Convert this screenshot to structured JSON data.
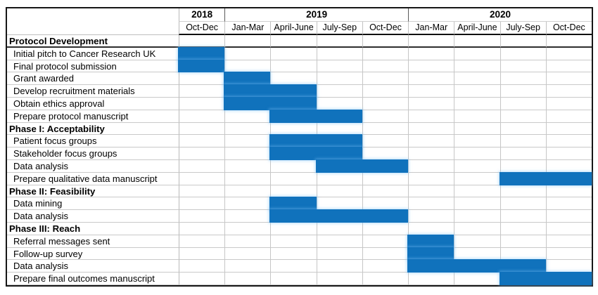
{
  "chart_data": {
    "type": "gantt",
    "title": "",
    "time_axis": {
      "years": [
        {
          "label": "2018",
          "quarter_span": 1
        },
        {
          "label": "2019",
          "quarter_span": 4
        },
        {
          "label": "2020",
          "quarter_span": 4
        }
      ],
      "quarters": [
        "Oct-Dec",
        "Jan-Mar",
        "April-June",
        "July-Sep",
        "Oct-Dec",
        "Jan-Mar",
        "April-June",
        "July-Sep",
        "Oct-Dec"
      ]
    },
    "rows": [
      {
        "label": "Protocol Development",
        "section": true,
        "start": null,
        "span": 0
      },
      {
        "label": "Initial pitch to Cancer Research UK",
        "section": false,
        "start": 1,
        "span": 1
      },
      {
        "label": "Final protocol submission",
        "section": false,
        "start": 1,
        "span": 1
      },
      {
        "label": "Grant awarded",
        "section": false,
        "start": 2,
        "span": 1
      },
      {
        "label": "Develop recruitment materials",
        "section": false,
        "start": 2,
        "span": 2
      },
      {
        "label": "Obtain ethics approval",
        "section": false,
        "start": 2,
        "span": 2
      },
      {
        "label": "Prepare protocol manuscript",
        "section": false,
        "start": 3,
        "span": 2
      },
      {
        "label": "Phase I: Acceptability",
        "section": true,
        "start": null,
        "span": 0
      },
      {
        "label": "Patient focus groups",
        "section": false,
        "start": 3,
        "span": 2
      },
      {
        "label": "Stakeholder focus groups",
        "section": false,
        "start": 3,
        "span": 2
      },
      {
        "label": "Data analysis",
        "section": false,
        "start": 4,
        "span": 2
      },
      {
        "label": "Prepare qualitative data manuscript",
        "section": false,
        "start": 8,
        "span": 2
      },
      {
        "label": "Phase II: Feasibility",
        "section": true,
        "start": null,
        "span": 0
      },
      {
        "label": "Data mining",
        "section": false,
        "start": 3,
        "span": 1
      },
      {
        "label": "Data analysis",
        "section": false,
        "start": 3,
        "span": 3
      },
      {
        "label": "Phase III: Reach",
        "section": true,
        "start": null,
        "span": 0
      },
      {
        "label": "Referral messages sent",
        "section": false,
        "start": 6,
        "span": 1
      },
      {
        "label": "Follow-up survey",
        "section": false,
        "start": 6,
        "span": 1
      },
      {
        "label": "Data analysis",
        "section": false,
        "start": 6,
        "span": 3
      },
      {
        "label": "Prepare final outcomes manuscript",
        "section": false,
        "start": 8,
        "span": 2
      }
    ],
    "colors": {
      "bar": "#1072BC",
      "gridline": "#C9C9C9",
      "outer_border": "#161616"
    },
    "layout_hints": {
      "quarter_columns": 9,
      "bars_merge_across_adjacent_rows": true,
      "header_underline": "thick black under quarter row"
    }
  }
}
